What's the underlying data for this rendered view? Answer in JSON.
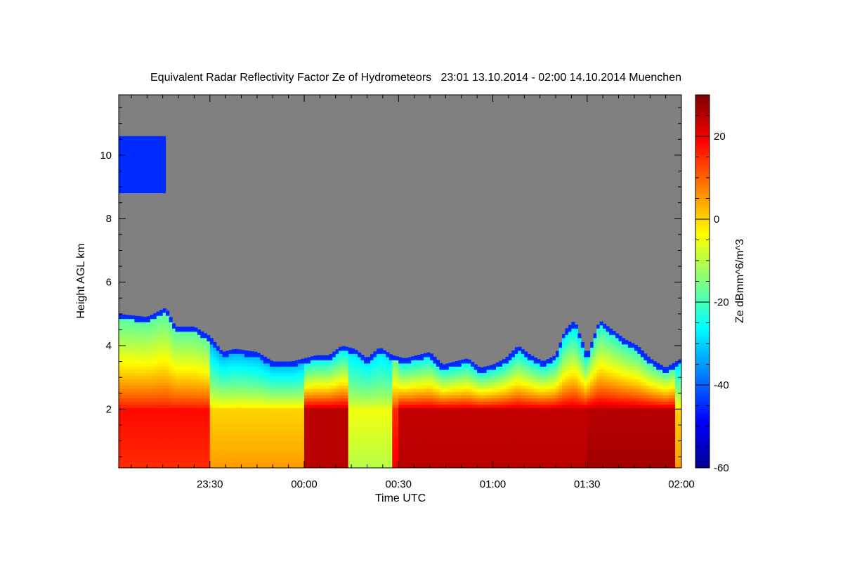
{
  "chart_data": {
    "type": "heatmap",
    "title": "Equivalent Radar Reflectivity Factor Ze of Hydrometeors   23:01 13.10.2014 - 02:00 14.10.2014 Muenchen",
    "xlabel": "Time UTC",
    "ylabel": "Height AGL km",
    "colorbar_label": "Ze dBmm^6/m^3",
    "xlim_minutes_after_2300": [
      1,
      180
    ],
    "ylim": [
      0.15,
      11.9
    ],
    "x_ticks": [
      {
        "label": "23:30",
        "value": 30
      },
      {
        "label": "00:00",
        "value": 60
      },
      {
        "label": "00:30",
        "value": 90
      },
      {
        "label": "01:00",
        "value": 120
      },
      {
        "label": "01:30",
        "value": 150
      },
      {
        "label": "02:00",
        "value": 180
      }
    ],
    "y_ticks": [
      {
        "label": "2",
        "value": 2
      },
      {
        "label": "4",
        "value": 4
      },
      {
        "label": "6",
        "value": 6
      },
      {
        "label": "8",
        "value": 8
      },
      {
        "label": "10",
        "value": 10
      }
    ],
    "colorbar_range": [
      -60,
      30
    ],
    "colorbar_ticks": [
      {
        "label": "20",
        "value": 20
      },
      {
        "label": "0",
        "value": 0
      },
      {
        "label": "-20",
        "value": -20
      },
      {
        "label": "-40",
        "value": -40
      },
      {
        "label": "-60",
        "value": -60
      }
    ],
    "background_color": "#808080",
    "cloud_top_profile_km": [
      [
        1,
        5.0
      ],
      [
        10,
        4.9
      ],
      [
        16,
        5.2
      ],
      [
        19,
        4.6
      ],
      [
        25,
        4.6
      ],
      [
        30,
        4.3
      ],
      [
        34,
        3.8
      ],
      [
        38,
        3.9
      ],
      [
        45,
        3.8
      ],
      [
        50,
        3.5
      ],
      [
        56,
        3.5
      ],
      [
        60,
        3.6
      ],
      [
        64,
        3.7
      ],
      [
        68,
        3.7
      ],
      [
        72,
        4.0
      ],
      [
        76,
        3.9
      ],
      [
        80,
        3.6
      ],
      [
        84,
        3.95
      ],
      [
        88,
        3.7
      ],
      [
        92,
        3.6
      ],
      [
        96,
        3.7
      ],
      [
        100,
        3.8
      ],
      [
        104,
        3.4
      ],
      [
        108,
        3.5
      ],
      [
        112,
        3.6
      ],
      [
        116,
        3.3
      ],
      [
        120,
        3.4
      ],
      [
        124,
        3.6
      ],
      [
        128,
        4.0
      ],
      [
        132,
        3.7
      ],
      [
        136,
        3.5
      ],
      [
        140,
        3.7
      ],
      [
        143,
        4.5
      ],
      [
        146,
        4.8
      ],
      [
        150,
        3.7
      ],
      [
        154,
        4.8
      ],
      [
        158,
        4.5
      ],
      [
        162,
        4.2
      ],
      [
        166,
        4.0
      ],
      [
        170,
        3.6
      ],
      [
        175,
        3.3
      ],
      [
        180,
        3.6
      ]
    ],
    "upper_cloud": {
      "x_range": [
        1,
        16
      ],
      "height_km": [
        8.8,
        10.6
      ],
      "ze_dbz": -45
    },
    "ze_by_period": [
      {
        "x_range": [
          1,
          30
        ],
        "ze_near_surface": 15,
        "ze_at_2km": 18,
        "ze_at_top": -20
      },
      {
        "x_range": [
          30,
          60
        ],
        "ze_near_surface": 5,
        "ze_at_2km": 0,
        "ze_at_top": -35
      },
      {
        "x_range": [
          60,
          74
        ],
        "ze_near_surface": 25,
        "ze_at_2km": 25,
        "ze_at_top": -30
      },
      {
        "x_range": [
          74,
          88
        ],
        "ze_near_surface": -10,
        "ze_at_2km": -5,
        "ze_at_top": -30
      },
      {
        "x_range": [
          88,
          90
        ],
        "ze_near_surface": 20,
        "ze_at_2km": 15,
        "ze_at_top": -20
      },
      {
        "x_range": [
          90,
          150
        ],
        "ze_near_surface": 25,
        "ze_at_2km": 24,
        "ze_at_top": -30
      },
      {
        "x_range": [
          150,
          178
        ],
        "ze_near_surface": 27,
        "ze_at_2km": 25,
        "ze_at_top": -25
      },
      {
        "x_range": [
          178,
          180
        ],
        "ze_near_surface": 5,
        "ze_at_2km": 0,
        "ze_at_top": -30
      }
    ]
  }
}
